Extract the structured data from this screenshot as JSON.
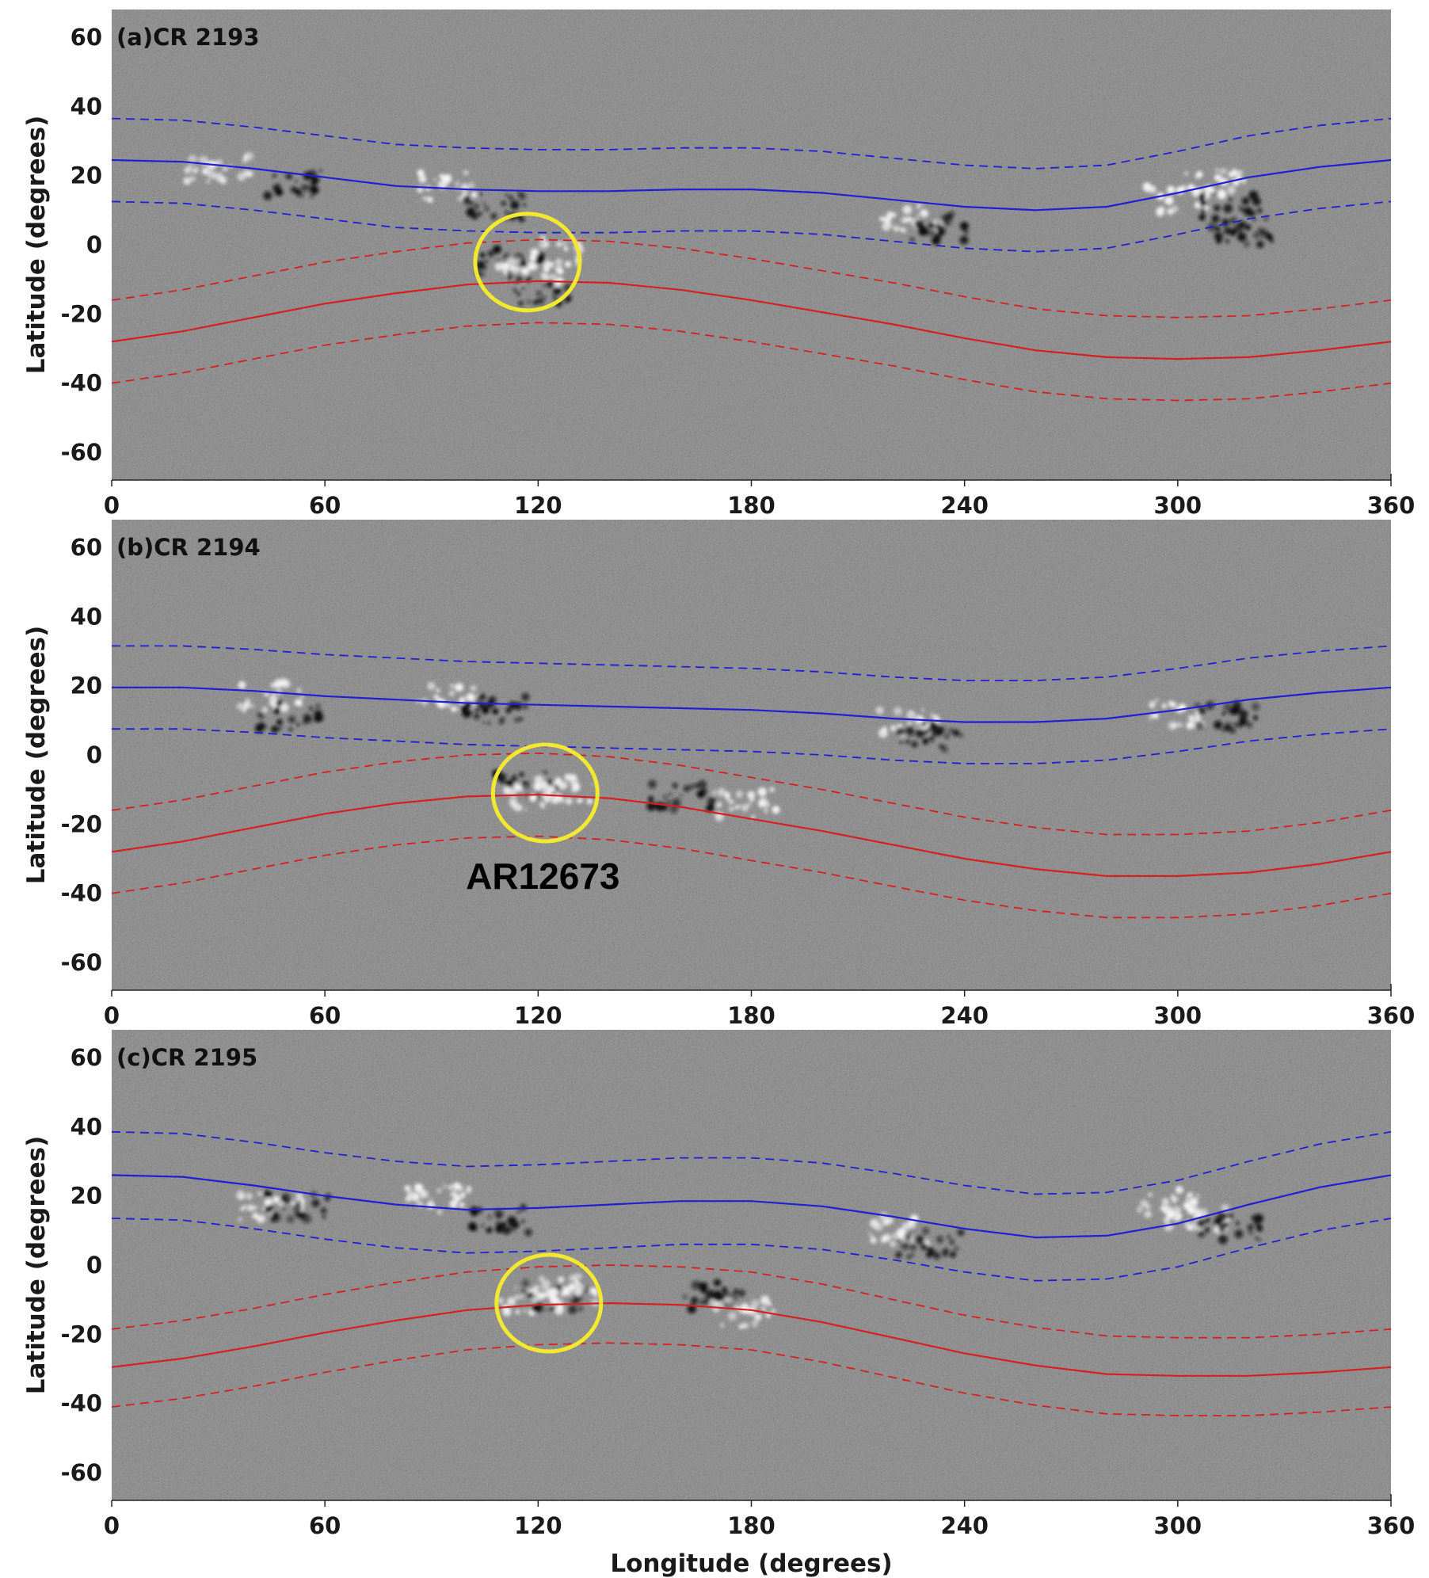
{
  "chart_data": [
    {
      "type": "heatmap",
      "panel_label": "(a)CR 2193",
      "xlabel": "",
      "ylabel": "Latitude (degrees)",
      "xlim": [
        0,
        360
      ],
      "ylim": [
        -68,
        68
      ],
      "xticks": [
        "0",
        "60",
        "120",
        "180",
        "240",
        "300",
        "360"
      ],
      "yticks": [
        "60",
        "40",
        "20",
        "0",
        "-20",
        "-40",
        "-60"
      ],
      "series": [
        {
          "color": "#1f1fd6",
          "style": "solid",
          "x": [
            0,
            20,
            40,
            60,
            80,
            100,
            120,
            140,
            160,
            180,
            200,
            220,
            240,
            260,
            280,
            300,
            320,
            340,
            360
          ],
          "y": [
            24.5,
            24,
            22,
            19.5,
            17,
            16,
            15.5,
            15.5,
            16,
            16,
            15,
            13,
            11,
            10,
            11,
            15,
            19.5,
            22.5,
            24.5
          ]
        },
        {
          "color": "#1f1fd6",
          "style": "dashed",
          "x": [
            0,
            20,
            40,
            60,
            80,
            100,
            120,
            140,
            160,
            180,
            200,
            220,
            240,
            260,
            280,
            300,
            320,
            340,
            360
          ],
          "y": [
            12.5,
            12,
            10,
            7.5,
            5,
            4,
            3.5,
            3.5,
            4,
            4,
            3,
            1,
            -1,
            -2,
            -1,
            3,
            7.5,
            10.5,
            12.5
          ]
        },
        {
          "color": "#1f1fd6",
          "style": "dashed",
          "x": [
            0,
            20,
            40,
            60,
            80,
            100,
            120,
            140,
            160,
            180,
            200,
            220,
            240,
            260,
            280,
            300,
            320,
            340,
            360
          ],
          "y": [
            36.5,
            36,
            34,
            31.5,
            29,
            28,
            27.5,
            27.5,
            28,
            28,
            27,
            25,
            23,
            22,
            23,
            27,
            31.5,
            34.5,
            36.5
          ]
        },
        {
          "color": "#d62020",
          "style": "solid",
          "x": [
            0,
            20,
            40,
            60,
            80,
            100,
            120,
            140,
            160,
            180,
            200,
            220,
            240,
            260,
            280,
            300,
            320,
            340,
            360
          ],
          "y": [
            -28,
            -25,
            -21,
            -17,
            -14,
            -11.5,
            -10.5,
            -11,
            -13,
            -16,
            -19.5,
            -23,
            -27,
            -30.5,
            -32.5,
            -33,
            -32.5,
            -30.5,
            -28
          ]
        },
        {
          "color": "#d62020",
          "style": "dashed",
          "x": [
            0,
            20,
            40,
            60,
            80,
            100,
            120,
            140,
            160,
            180,
            200,
            220,
            240,
            260,
            280,
            300,
            320,
            340,
            360
          ],
          "y": [
            -16,
            -13,
            -9,
            -5,
            -2,
            0.5,
            1.5,
            1,
            -1,
            -4,
            -7.5,
            -11,
            -15,
            -18.5,
            -20.5,
            -21,
            -20.5,
            -18.5,
            -16
          ]
        },
        {
          "color": "#d62020",
          "style": "dashed",
          "x": [
            0,
            20,
            40,
            60,
            80,
            100,
            120,
            140,
            160,
            180,
            200,
            220,
            240,
            260,
            280,
            300,
            320,
            340,
            360
          ],
          "y": [
            -40,
            -37,
            -33,
            -29,
            -26,
            -23.5,
            -22.5,
            -23,
            -25,
            -28,
            -31.5,
            -35,
            -39,
            -42.5,
            -44.5,
            -45,
            -44.5,
            -42.5,
            -40
          ]
        }
      ],
      "highlight": {
        "shape": "circle",
        "color": "#f2e830",
        "center": [
          117,
          -5
        ]
      },
      "annotation": ""
    },
    {
      "type": "heatmap",
      "panel_label": "(b)CR 2194",
      "xlabel": "",
      "ylabel": "Latitude (degrees)",
      "xlim": [
        0,
        360
      ],
      "ylim": [
        -68,
        68
      ],
      "xticks": [
        "0",
        "60",
        "120",
        "180",
        "240",
        "300",
        "360"
      ],
      "yticks": [
        "60",
        "40",
        "20",
        "0",
        "-20",
        "-40",
        "-60"
      ],
      "series": [
        {
          "color": "#1f1fd6",
          "style": "solid",
          "x": [
            0,
            20,
            40,
            60,
            80,
            100,
            120,
            140,
            160,
            180,
            200,
            220,
            240,
            260,
            280,
            300,
            320,
            340,
            360
          ],
          "y": [
            19.5,
            19.5,
            18.5,
            17,
            16,
            15,
            14.5,
            14,
            13.5,
            13,
            12,
            10.5,
            9.5,
            9.5,
            10.5,
            13,
            16,
            18,
            19.5
          ]
        },
        {
          "color": "#1f1fd6",
          "style": "dashed",
          "x": [
            0,
            20,
            40,
            60,
            80,
            100,
            120,
            140,
            160,
            180,
            200,
            220,
            240,
            260,
            280,
            300,
            320,
            340,
            360
          ],
          "y": [
            7.5,
            7.5,
            6.5,
            5,
            4,
            3,
            2.5,
            2,
            1.5,
            1,
            0,
            -1.5,
            -2.5,
            -2.5,
            -1.5,
            1,
            4,
            6,
            7.5
          ]
        },
        {
          "color": "#1f1fd6",
          "style": "dashed",
          "x": [
            0,
            20,
            40,
            60,
            80,
            100,
            120,
            140,
            160,
            180,
            200,
            220,
            240,
            260,
            280,
            300,
            320,
            340,
            360
          ],
          "y": [
            31.5,
            31.5,
            30.5,
            29,
            28,
            27,
            26.5,
            26,
            25.5,
            25,
            24,
            22.5,
            21.5,
            21.5,
            22.5,
            25,
            28,
            30,
            31.5
          ]
        },
        {
          "color": "#d62020",
          "style": "solid",
          "x": [
            0,
            20,
            40,
            60,
            80,
            100,
            120,
            140,
            160,
            180,
            200,
            220,
            240,
            260,
            280,
            300,
            320,
            340,
            360
          ],
          "y": [
            -28,
            -25,
            -21,
            -17,
            -14,
            -12,
            -11.5,
            -12.5,
            -15,
            -18.5,
            -22,
            -26,
            -30,
            -33,
            -35,
            -35,
            -34,
            -31.5,
            -28
          ]
        },
        {
          "color": "#d62020",
          "style": "dashed",
          "x": [
            0,
            20,
            40,
            60,
            80,
            100,
            120,
            140,
            160,
            180,
            200,
            220,
            240,
            260,
            280,
            300,
            320,
            340,
            360
          ],
          "y": [
            -16,
            -13,
            -9,
            -5,
            -2,
            0,
            0.5,
            -0.5,
            -3,
            -6.5,
            -10,
            -14,
            -18,
            -21,
            -23,
            -23,
            -22,
            -19.5,
            -16
          ]
        },
        {
          "color": "#d62020",
          "style": "dashed",
          "x": [
            0,
            20,
            40,
            60,
            80,
            100,
            120,
            140,
            160,
            180,
            200,
            220,
            240,
            260,
            280,
            300,
            320,
            340,
            360
          ],
          "y": [
            -40,
            -37,
            -33,
            -29,
            -26,
            -24,
            -23.5,
            -24.5,
            -27,
            -30.5,
            -34,
            -38,
            -42,
            -45,
            -47,
            -47,
            -46,
            -43.5,
            -40
          ]
        }
      ],
      "highlight": {
        "shape": "circle",
        "color": "#f2e830",
        "center": [
          122,
          -11
        ]
      },
      "annotation": "AR12673"
    },
    {
      "type": "heatmap",
      "panel_label": "(c)CR 2195",
      "xlabel": "Longitude (degrees)",
      "ylabel": "Latitude (degrees)",
      "xlim": [
        0,
        360
      ],
      "ylim": [
        -68,
        68
      ],
      "xticks": [
        "0",
        "60",
        "120",
        "180",
        "240",
        "300",
        "360"
      ],
      "yticks": [
        "60",
        "40",
        "20",
        "0",
        "-20",
        "-40",
        "-60"
      ],
      "series": [
        {
          "color": "#1f1fd6",
          "style": "solid",
          "x": [
            0,
            20,
            40,
            60,
            80,
            100,
            120,
            140,
            160,
            180,
            200,
            220,
            240,
            260,
            280,
            300,
            320,
            340,
            360
          ],
          "y": [
            26,
            25.5,
            23,
            20,
            17.5,
            16,
            16.5,
            17.5,
            18.5,
            18.5,
            17,
            14,
            10.5,
            8,
            8.5,
            12,
            17.5,
            22.5,
            26
          ]
        },
        {
          "color": "#1f1fd6",
          "style": "dashed",
          "x": [
            0,
            20,
            40,
            60,
            80,
            100,
            120,
            140,
            160,
            180,
            200,
            220,
            240,
            260,
            280,
            300,
            320,
            340,
            360
          ],
          "y": [
            13.5,
            13,
            10.5,
            7.5,
            5,
            3.5,
            4,
            5,
            6,
            6,
            4.5,
            1.5,
            -2,
            -4.5,
            -4,
            -0.5,
            5,
            10,
            13.5
          ]
        },
        {
          "color": "#1f1fd6",
          "style": "dashed",
          "x": [
            0,
            20,
            40,
            60,
            80,
            100,
            120,
            140,
            160,
            180,
            200,
            220,
            240,
            260,
            280,
            300,
            320,
            340,
            360
          ],
          "y": [
            38.5,
            38,
            35.5,
            32.5,
            30,
            28.5,
            29,
            30,
            31,
            31,
            29.5,
            26.5,
            23,
            20.5,
            21,
            24.5,
            30,
            35,
            38.5
          ]
        },
        {
          "color": "#d62020",
          "style": "solid",
          "x": [
            0,
            20,
            40,
            60,
            80,
            100,
            120,
            140,
            160,
            180,
            200,
            220,
            240,
            260,
            280,
            300,
            320,
            340,
            360
          ],
          "y": [
            -29.5,
            -27,
            -23.5,
            -19.5,
            -16,
            -13,
            -11.5,
            -11,
            -11.5,
            -13,
            -16.5,
            -21,
            -25.5,
            -29,
            -31.5,
            -32,
            -32,
            -31,
            -29.5
          ]
        },
        {
          "color": "#d62020",
          "style": "dashed",
          "x": [
            0,
            20,
            40,
            60,
            80,
            100,
            120,
            140,
            160,
            180,
            200,
            220,
            240,
            260,
            280,
            300,
            320,
            340,
            360
          ],
          "y": [
            -18.5,
            -16,
            -12.5,
            -8.5,
            -5,
            -2,
            -0.5,
            0,
            -0.5,
            -2,
            -5.5,
            -10,
            -14.5,
            -18,
            -20.5,
            -21,
            -21,
            -20,
            -18.5
          ]
        },
        {
          "color": "#d62020",
          "style": "dashed",
          "x": [
            0,
            20,
            40,
            60,
            80,
            100,
            120,
            140,
            160,
            180,
            200,
            220,
            240,
            260,
            280,
            300,
            320,
            340,
            360
          ],
          "y": [
            -41,
            -38.5,
            -35,
            -31,
            -27.5,
            -24.5,
            -23,
            -22.5,
            -23,
            -24.5,
            -28,
            -32.5,
            -37,
            -40.5,
            -43,
            -43.5,
            -43.5,
            -42.5,
            -41
          ]
        }
      ],
      "highlight": {
        "shape": "circle",
        "color": "#f2e830",
        "center": [
          123,
          -11
        ]
      },
      "annotation": ""
    }
  ]
}
